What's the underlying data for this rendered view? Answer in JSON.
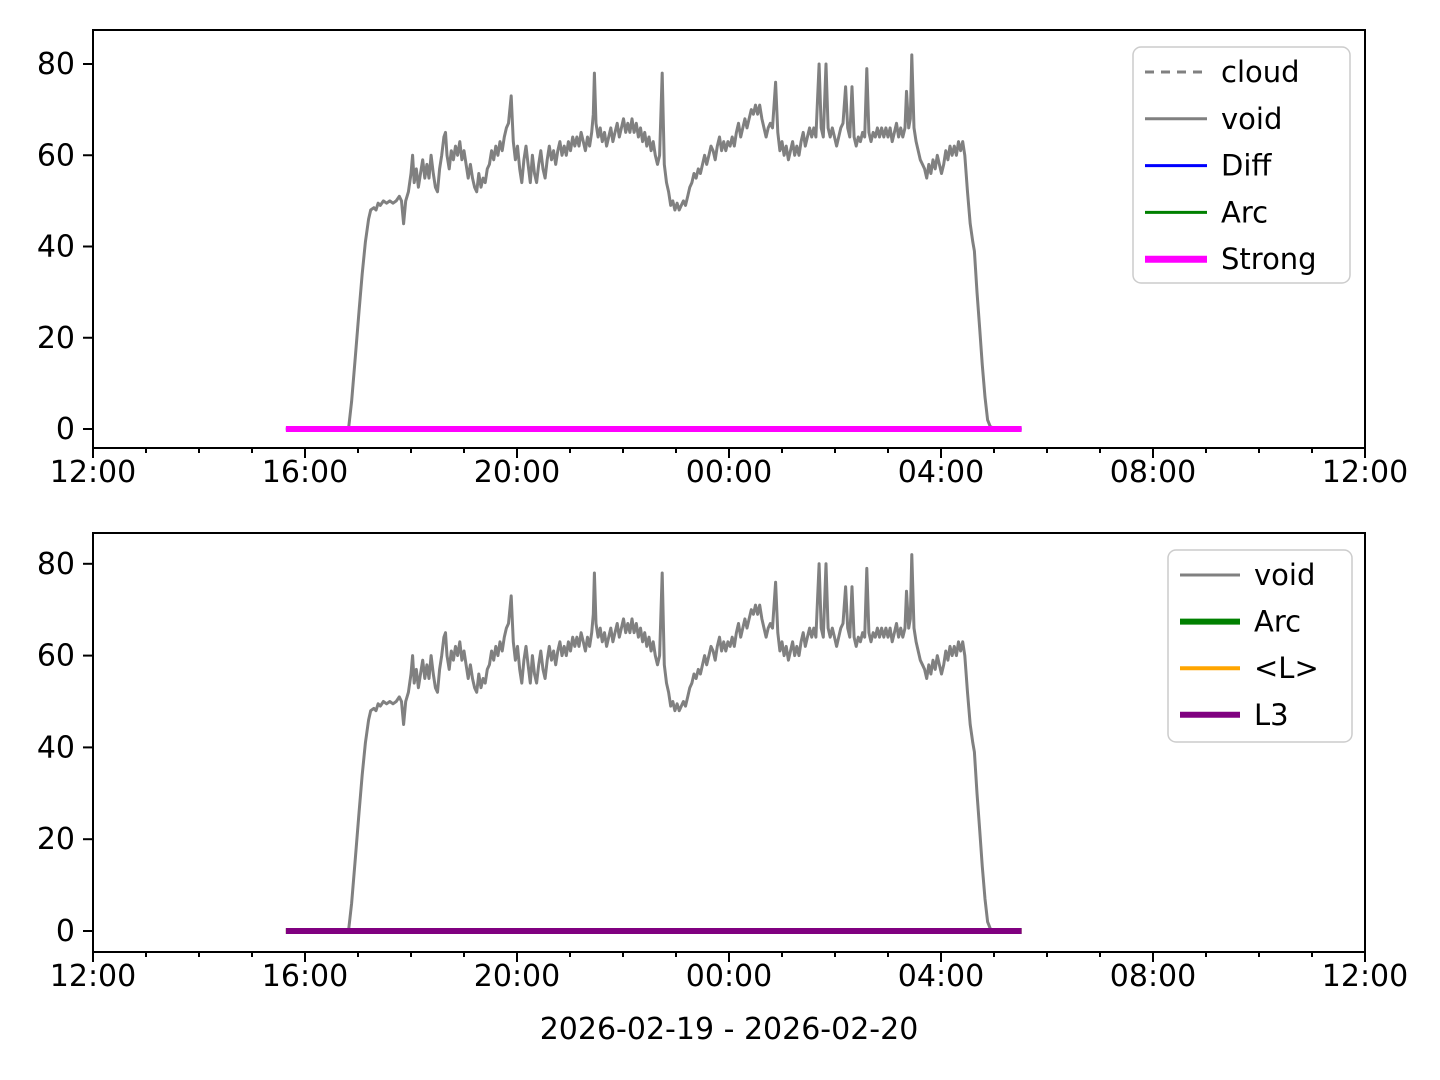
{
  "figure": {
    "background": "#ffffff",
    "xlabel": "2026-02-19 - 2026-02-20"
  },
  "chart_data": [
    {
      "type": "line",
      "title": "",
      "xlabel": "",
      "ylabel": "",
      "x_unit": "time of day, hours after 12:00 (2026-02-19 noon to 2026-02-20 noon)",
      "xlim": [
        0,
        24
      ],
      "ylim": [
        -4.2,
        87.5
      ],
      "grid": false,
      "x_major_ticks": [
        {
          "t": 0,
          "label": "12:00"
        },
        {
          "t": 4,
          "label": "16:00"
        },
        {
          "t": 8,
          "label": "20:00"
        },
        {
          "t": 12,
          "label": "00:00"
        },
        {
          "t": 16,
          "label": "04:00"
        },
        {
          "t": 20,
          "label": "08:00"
        },
        {
          "t": 24,
          "label": "12:00"
        }
      ],
      "x_minor_step_hours": 1,
      "y_ticks": [
        0,
        20,
        40,
        60,
        80
      ],
      "legend": {
        "position": "upper right",
        "entries": [
          {
            "label": "cloud",
            "color": "#808080",
            "dash": true,
            "lw": 3
          },
          {
            "label": "void",
            "color": "#808080",
            "dash": false,
            "lw": 3
          },
          {
            "label": "Diff",
            "color": "#0000ff",
            "dash": false,
            "lw": 3
          },
          {
            "label": "Arc",
            "color": "#008000",
            "dash": false,
            "lw": 3
          },
          {
            "label": "Strong",
            "color": "#ff00ff",
            "dash": false,
            "lw": 7
          }
        ]
      },
      "series": [
        {
          "name": "void",
          "color": "#808080",
          "lw": 3,
          "dash": false,
          "points_ref": "void_points"
        },
        {
          "name": "Diff",
          "color": "#0000ff",
          "lw": 3,
          "dash": false,
          "points_ref": "zero_span"
        },
        {
          "name": "Arc",
          "color": "#008000",
          "lw": 3,
          "dash": false,
          "points_ref": "zero_span"
        },
        {
          "name": "Strong",
          "color": "#ff00ff",
          "lw": 6,
          "dash": false,
          "points_ref": "zero_span"
        },
        {
          "name": "cloud",
          "color": "#808080",
          "lw": 3,
          "dash": true,
          "points_ref": "empty"
        }
      ]
    },
    {
      "type": "line",
      "title": "",
      "xlabel": "2026-02-19 - 2026-02-20",
      "ylabel": "",
      "x_unit": "time of day, hours after 12:00 (2026-02-19 noon to 2026-02-20 noon)",
      "xlim": [
        0,
        24
      ],
      "ylim": [
        -4.2,
        87.5
      ],
      "grid": false,
      "x_major_ticks": [
        {
          "t": 0,
          "label": "12:00"
        },
        {
          "t": 4,
          "label": "16:00"
        },
        {
          "t": 8,
          "label": "20:00"
        },
        {
          "t": 12,
          "label": "00:00"
        },
        {
          "t": 16,
          "label": "04:00"
        },
        {
          "t": 20,
          "label": "08:00"
        },
        {
          "t": 24,
          "label": "12:00"
        }
      ],
      "x_minor_step_hours": 1,
      "y_ticks": [
        0,
        20,
        40,
        60,
        80
      ],
      "legend": {
        "position": "upper right",
        "entries": [
          {
            "label": "void",
            "color": "#808080",
            "dash": false,
            "lw": 3
          },
          {
            "label": "Arc",
            "color": "#008000",
            "dash": false,
            "lw": 6
          },
          {
            "label": "<L>",
            "color": "#ffa500",
            "dash": false,
            "lw": 4
          },
          {
            "label": "L3",
            "color": "#800080",
            "dash": false,
            "lw": 6
          }
        ]
      },
      "series": [
        {
          "name": "void",
          "color": "#808080",
          "lw": 3,
          "dash": false,
          "points_ref": "void_points"
        },
        {
          "name": "Arc",
          "color": "#008000",
          "lw": 6,
          "dash": false,
          "points_ref": "zero_span"
        },
        {
          "name": "<L>",
          "color": "#ffa500",
          "lw": 4,
          "dash": false,
          "points_ref": "zero_span"
        },
        {
          "name": "L3",
          "color": "#800080",
          "lw": 6,
          "dash": false,
          "points_ref": "zero_span"
        }
      ]
    }
  ],
  "shared_points": {
    "empty": [],
    "zero_span": [
      [
        3.64,
        0
      ],
      [
        17.52,
        0
      ]
    ],
    "void_points": [
      [
        4.7,
        0
      ],
      [
        4.82,
        0
      ],
      [
        4.88,
        6
      ],
      [
        4.95,
        16
      ],
      [
        5.02,
        26
      ],
      [
        5.08,
        34
      ],
      [
        5.14,
        41
      ],
      [
        5.2,
        46
      ],
      [
        5.24,
        48
      ],
      [
        5.3,
        48.5
      ],
      [
        5.34,
        48
      ],
      [
        5.38,
        49.5
      ],
      [
        5.42,
        49
      ],
      [
        5.48,
        50
      ],
      [
        5.54,
        49.5
      ],
      [
        5.6,
        50
      ],
      [
        5.66,
        49.5
      ],
      [
        5.72,
        50
      ],
      [
        5.78,
        51
      ],
      [
        5.82,
        50
      ],
      [
        5.86,
        45
      ],
      [
        5.9,
        50
      ],
      [
        5.95,
        52
      ],
      [
        6.0,
        56
      ],
      [
        6.03,
        60
      ],
      [
        6.06,
        54
      ],
      [
        6.1,
        57
      ],
      [
        6.14,
        53
      ],
      [
        6.18,
        56
      ],
      [
        6.22,
        59
      ],
      [
        6.26,
        55
      ],
      [
        6.3,
        58
      ],
      [
        6.34,
        55
      ],
      [
        6.38,
        60
      ],
      [
        6.42,
        56
      ],
      [
        6.46,
        53
      ],
      [
        6.5,
        52
      ],
      [
        6.54,
        57
      ],
      [
        6.58,
        60
      ],
      [
        6.62,
        64
      ],
      [
        6.65,
        65
      ],
      [
        6.68,
        60
      ],
      [
        6.72,
        57
      ],
      [
        6.76,
        61
      ],
      [
        6.8,
        59
      ],
      [
        6.84,
        62
      ],
      [
        6.88,
        60
      ],
      [
        6.92,
        63
      ],
      [
        6.96,
        59
      ],
      [
        7.0,
        61
      ],
      [
        7.04,
        58
      ],
      [
        7.08,
        55
      ],
      [
        7.12,
        58
      ],
      [
        7.16,
        55
      ],
      [
        7.2,
        53
      ],
      [
        7.24,
        52
      ],
      [
        7.28,
        56
      ],
      [
        7.32,
        53
      ],
      [
        7.36,
        55
      ],
      [
        7.4,
        54
      ],
      [
        7.44,
        57
      ],
      [
        7.48,
        58
      ],
      [
        7.52,
        61
      ],
      [
        7.56,
        59
      ],
      [
        7.6,
        62
      ],
      [
        7.64,
        60
      ],
      [
        7.68,
        63
      ],
      [
        7.72,
        61
      ],
      [
        7.76,
        64
      ],
      [
        7.8,
        66
      ],
      [
        7.84,
        67
      ],
      [
        7.89,
        73
      ],
      [
        7.93,
        63
      ],
      [
        7.97,
        59
      ],
      [
        8.01,
        62
      ],
      [
        8.05,
        57
      ],
      [
        8.09,
        54
      ],
      [
        8.13,
        59
      ],
      [
        8.17,
        62
      ],
      [
        8.21,
        58
      ],
      [
        8.25,
        54
      ],
      [
        8.29,
        60
      ],
      [
        8.33,
        56
      ],
      [
        8.37,
        54
      ],
      [
        8.41,
        58
      ],
      [
        8.45,
        61
      ],
      [
        8.49,
        57
      ],
      [
        8.53,
        55
      ],
      [
        8.57,
        59
      ],
      [
        8.61,
        62
      ],
      [
        8.65,
        59
      ],
      [
        8.69,
        61
      ],
      [
        8.73,
        58
      ],
      [
        8.77,
        61
      ],
      [
        8.81,
        63
      ],
      [
        8.85,
        60
      ],
      [
        8.89,
        62
      ],
      [
        8.93,
        60
      ],
      [
        8.97,
        63
      ],
      [
        9.01,
        61
      ],
      [
        9.05,
        64
      ],
      [
        9.09,
        62
      ],
      [
        9.13,
        64
      ],
      [
        9.17,
        62
      ],
      [
        9.21,
        65
      ],
      [
        9.25,
        63
      ],
      [
        9.29,
        61
      ],
      [
        9.33,
        64
      ],
      [
        9.37,
        62
      ],
      [
        9.41,
        65
      ],
      [
        9.44,
        69
      ],
      [
        9.46,
        78
      ],
      [
        9.49,
        67
      ],
      [
        9.53,
        64
      ],
      [
        9.57,
        66
      ],
      [
        9.61,
        63
      ],
      [
        9.65,
        65
      ],
      [
        9.69,
        62
      ],
      [
        9.73,
        64
      ],
      [
        9.77,
        66
      ],
      [
        9.81,
        63
      ],
      [
        9.85,
        65
      ],
      [
        9.89,
        67
      ],
      [
        9.93,
        64
      ],
      [
        9.97,
        66
      ],
      [
        10.01,
        68
      ],
      [
        10.05,
        65
      ],
      [
        10.09,
        67
      ],
      [
        10.13,
        65
      ],
      [
        10.17,
        68
      ],
      [
        10.21,
        65
      ],
      [
        10.25,
        67
      ],
      [
        10.29,
        64
      ],
      [
        10.33,
        66
      ],
      [
        10.37,
        63
      ],
      [
        10.41,
        65
      ],
      [
        10.45,
        62
      ],
      [
        10.49,
        64
      ],
      [
        10.53,
        61
      ],
      [
        10.57,
        63
      ],
      [
        10.61,
        60
      ],
      [
        10.65,
        58
      ],
      [
        10.69,
        60
      ],
      [
        10.74,
        78
      ],
      [
        10.78,
        58
      ],
      [
        10.82,
        54
      ],
      [
        10.86,
        52
      ],
      [
        10.9,
        49
      ],
      [
        10.94,
        50
      ],
      [
        10.98,
        48
      ],
      [
        11.02,
        49.5
      ],
      [
        11.06,
        48
      ],
      [
        11.1,
        49
      ],
      [
        11.14,
        50
      ],
      [
        11.18,
        49
      ],
      [
        11.22,
        51
      ],
      [
        11.26,
        53
      ],
      [
        11.3,
        54
      ],
      [
        11.34,
        56
      ],
      [
        11.38,
        55
      ],
      [
        11.42,
        57
      ],
      [
        11.46,
        56
      ],
      [
        11.5,
        58
      ],
      [
        11.54,
        60
      ],
      [
        11.58,
        58
      ],
      [
        11.62,
        60
      ],
      [
        11.66,
        62
      ],
      [
        11.7,
        61
      ],
      [
        11.74,
        59
      ],
      [
        11.78,
        62
      ],
      [
        11.82,
        64
      ],
      [
        11.86,
        61
      ],
      [
        11.9,
        63
      ],
      [
        11.94,
        61
      ],
      [
        11.98,
        63
      ],
      [
        12.02,
        62
      ],
      [
        12.06,
        64
      ],
      [
        12.1,
        62
      ],
      [
        12.14,
        65
      ],
      [
        12.18,
        67
      ],
      [
        12.22,
        64
      ],
      [
        12.26,
        66
      ],
      [
        12.3,
        68
      ],
      [
        12.34,
        66
      ],
      [
        12.38,
        68
      ],
      [
        12.42,
        70
      ],
      [
        12.46,
        69
      ],
      [
        12.5,
        71
      ],
      [
        12.54,
        69
      ],
      [
        12.58,
        71
      ],
      [
        12.62,
        68
      ],
      [
        12.66,
        66
      ],
      [
        12.7,
        64
      ],
      [
        12.74,
        66
      ],
      [
        12.78,
        67
      ],
      [
        12.82,
        66
      ],
      [
        12.88,
        76
      ],
      [
        12.92,
        65
      ],
      [
        12.96,
        61
      ],
      [
        13.0,
        63
      ],
      [
        13.04,
        60
      ],
      [
        13.08,
        62
      ],
      [
        13.12,
        59
      ],
      [
        13.16,
        61
      ],
      [
        13.2,
        63
      ],
      [
        13.24,
        60
      ],
      [
        13.28,
        62
      ],
      [
        13.32,
        60
      ],
      [
        13.36,
        63
      ],
      [
        13.4,
        65
      ],
      [
        13.44,
        62
      ],
      [
        13.48,
        64
      ],
      [
        13.52,
        66
      ],
      [
        13.56,
        64
      ],
      [
        13.6,
        66
      ],
      [
        13.64,
        64
      ],
      [
        13.7,
        80
      ],
      [
        13.74,
        66
      ],
      [
        13.78,
        64
      ],
      [
        13.83,
        80
      ],
      [
        13.87,
        66
      ],
      [
        13.91,
        64
      ],
      [
        13.95,
        66
      ],
      [
        13.99,
        64
      ],
      [
        14.03,
        62
      ],
      [
        14.07,
        64
      ],
      [
        14.11,
        66
      ],
      [
        14.15,
        67
      ],
      [
        14.2,
        75
      ],
      [
        14.24,
        66
      ],
      [
        14.28,
        64
      ],
      [
        14.32,
        75
      ],
      [
        14.36,
        64
      ],
      [
        14.4,
        62
      ],
      [
        14.44,
        64
      ],
      [
        14.48,
        63
      ],
      [
        14.52,
        65
      ],
      [
        14.56,
        64
      ],
      [
        14.6,
        79
      ],
      [
        14.64,
        65
      ],
      [
        14.68,
        63
      ],
      [
        14.72,
        65
      ],
      [
        14.76,
        64
      ],
      [
        14.8,
        66
      ],
      [
        14.84,
        64
      ],
      [
        14.88,
        66
      ],
      [
        14.92,
        64
      ],
      [
        14.96,
        66
      ],
      [
        15.0,
        64
      ],
      [
        15.04,
        66
      ],
      [
        15.08,
        63
      ],
      [
        15.12,
        65
      ],
      [
        15.16,
        67
      ],
      [
        15.2,
        64
      ],
      [
        15.24,
        66
      ],
      [
        15.28,
        64
      ],
      [
        15.32,
        66
      ],
      [
        15.35,
        74
      ],
      [
        15.39,
        66
      ],
      [
        15.42,
        68
      ],
      [
        15.45,
        82
      ],
      [
        15.49,
        66
      ],
      [
        15.53,
        63
      ],
      [
        15.57,
        61
      ],
      [
        15.61,
        59
      ],
      [
        15.65,
        58
      ],
      [
        15.69,
        57
      ],
      [
        15.73,
        55
      ],
      [
        15.77,
        58
      ],
      [
        15.81,
        56
      ],
      [
        15.85,
        59
      ],
      [
        15.89,
        57
      ],
      [
        15.93,
        60
      ],
      [
        15.97,
        58
      ],
      [
        16.01,
        56
      ],
      [
        16.05,
        58
      ],
      [
        16.09,
        61
      ],
      [
        16.13,
        59
      ],
      [
        16.17,
        62
      ],
      [
        16.21,
        60
      ],
      [
        16.25,
        62
      ],
      [
        16.29,
        60
      ],
      [
        16.33,
        63
      ],
      [
        16.37,
        61
      ],
      [
        16.41,
        63
      ],
      [
        16.45,
        60
      ],
      [
        16.5,
        52
      ],
      [
        16.55,
        45
      ],
      [
        16.6,
        41
      ],
      [
        16.63,
        39
      ],
      [
        16.68,
        30
      ],
      [
        16.73,
        22
      ],
      [
        16.78,
        14
      ],
      [
        16.83,
        7
      ],
      [
        16.88,
        2
      ],
      [
        16.93,
        0.5
      ],
      [
        17.0,
        0.2
      ],
      [
        17.1,
        0
      ]
    ]
  }
}
